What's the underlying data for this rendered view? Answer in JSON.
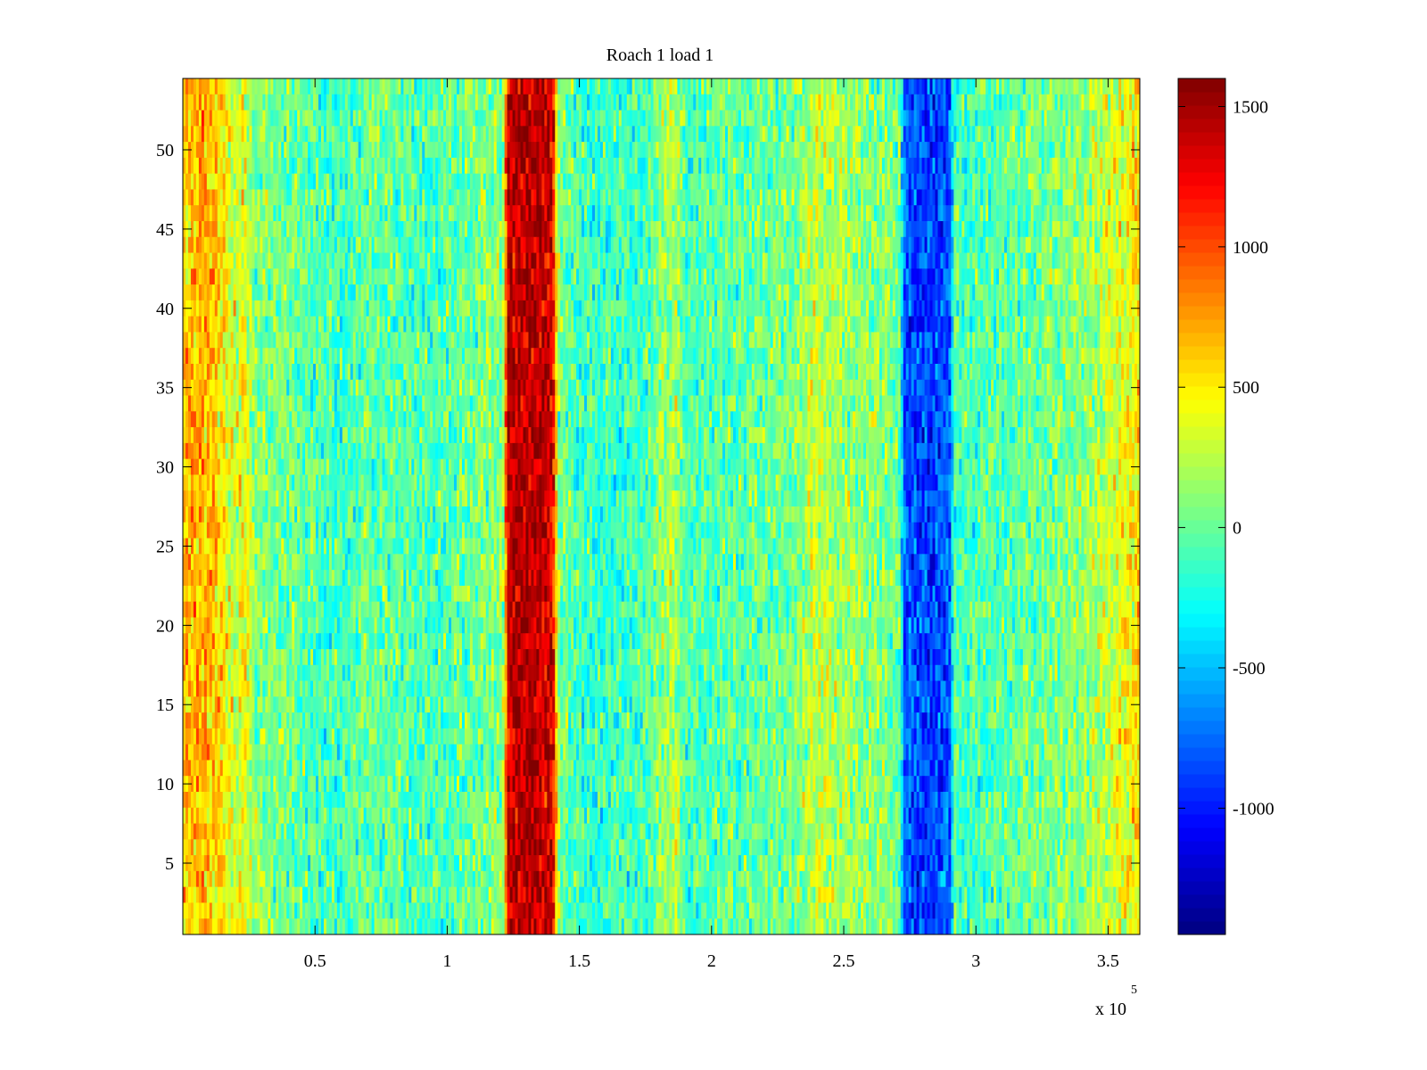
{
  "chart_data": {
    "type": "heatmap",
    "title": "Roach 1 load 1",
    "xlabel": "",
    "ylabel": "",
    "x_range": [
      0,
      362000
    ],
    "y_range": [
      0.5,
      54.5
    ],
    "x_ticks": [
      50000,
      100000,
      150000,
      200000,
      250000,
      300000,
      350000
    ],
    "x_tick_labels": [
      "0.5",
      "1",
      "1.5",
      "2",
      "2.5",
      "3",
      "3.5"
    ],
    "x_exponent_label": "x 10",
    "x_exponent_power": "5",
    "y_ticks": [
      5,
      10,
      15,
      20,
      25,
      30,
      35,
      40,
      45,
      50
    ],
    "y_tick_labels": [
      "5",
      "10",
      "15",
      "20",
      "25",
      "30",
      "35",
      "40",
      "45",
      "50"
    ],
    "colormap": "jet",
    "colorbar": {
      "range": [
        -1450,
        1600
      ],
      "ticks": [
        -1000,
        -500,
        0,
        500,
        1000,
        1500
      ],
      "tick_labels": [
        "-1000",
        "-500",
        "0",
        "500",
        "1000",
        "1500"
      ]
    },
    "rows": 54,
    "columns": 360,
    "column_profile": [
      {
        "x": 0,
        "value": 600
      },
      {
        "x": 8000,
        "value": 720
      },
      {
        "x": 15000,
        "value": 500
      },
      {
        "x": 20000,
        "value": 300
      },
      {
        "x": 23000,
        "value": 480
      },
      {
        "x": 27000,
        "value": 100
      },
      {
        "x": 60000,
        "value": -120
      },
      {
        "x": 70000,
        "value": 0
      },
      {
        "x": 95000,
        "value": -80
      },
      {
        "x": 110000,
        "value": 20
      },
      {
        "x": 121000,
        "value": 100
      },
      {
        "x": 123000,
        "value": 1380
      },
      {
        "x": 132000,
        "value": 1480
      },
      {
        "x": 140000,
        "value": 1300
      },
      {
        "x": 142000,
        "value": 100
      },
      {
        "x": 150000,
        "value": -150
      },
      {
        "x": 175000,
        "value": -100
      },
      {
        "x": 186000,
        "value": 250
      },
      {
        "x": 190000,
        "value": -80
      },
      {
        "x": 230000,
        "value": 40
      },
      {
        "x": 240000,
        "value": 300
      },
      {
        "x": 250000,
        "value": 150
      },
      {
        "x": 271000,
        "value": 50
      },
      {
        "x": 273000,
        "value": -800
      },
      {
        "x": 283000,
        "value": -900
      },
      {
        "x": 290000,
        "value": -800
      },
      {
        "x": 292000,
        "value": -100
      },
      {
        "x": 310000,
        "value": -40
      },
      {
        "x": 340000,
        "value": 120
      },
      {
        "x": 355000,
        "value": 380
      },
      {
        "x": 362000,
        "value": 560
      }
    ],
    "noise_amplitude": 280
  }
}
